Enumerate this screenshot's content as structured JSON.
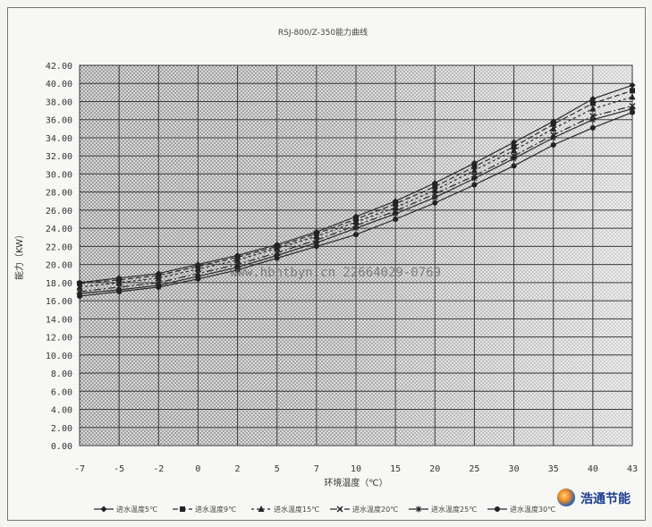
{
  "watermark": "www.hbhtbyn.cn 22664029-0769",
  "logo": {
    "text": "浩通节能"
  },
  "chart_data": {
    "type": "line",
    "title": "RSJ-800/Z-350能力曲线",
    "xlabel": "环境温度（℃）",
    "ylabel": "能力（KW）",
    "x": [
      -7,
      -5,
      -2,
      0,
      2,
      5,
      7,
      10,
      15,
      20,
      25,
      30,
      35,
      40,
      43
    ],
    "x_tick_labels": [
      "-7",
      "-5",
      "-2",
      "0",
      "2",
      "5",
      "7",
      "10",
      "15",
      "20",
      "25",
      "30",
      "35",
      "40",
      "43"
    ],
    "ylim": [
      0,
      42
    ],
    "y_ticks": [
      0,
      2,
      4,
      6,
      8,
      10,
      12,
      14,
      16,
      18,
      20,
      22,
      24,
      26,
      28,
      30,
      32,
      34,
      36,
      38,
      40,
      42
    ],
    "y_tick_labels": [
      "0.00",
      "2.00",
      "4.00",
      "6.00",
      "8.00",
      "10.00",
      "12.00",
      "14.00",
      "16.00",
      "18.00",
      "20.00",
      "22.00",
      "24.00",
      "26.00",
      "28.00",
      "30.00",
      "32.00",
      "34.00",
      "36.00",
      "38.00",
      "40.00",
      "42.00"
    ],
    "grid": true,
    "legend": "bottom",
    "series": [
      {
        "name": "进水温度5℃",
        "marker": "diamond",
        "dash": "",
        "values": [
          18.0,
          18.5,
          19.0,
          20.0,
          21.0,
          22.2,
          23.6,
          25.3,
          27.0,
          29.0,
          31.2,
          33.5,
          35.8,
          38.3,
          39.8
        ]
      },
      {
        "name": "进水温度9℃",
        "marker": "square",
        "dash": "6,3",
        "values": [
          17.9,
          18.3,
          18.8,
          19.8,
          20.8,
          22.0,
          23.4,
          25.0,
          26.7,
          28.6,
          30.8,
          33.0,
          35.5,
          37.8,
          39.2
        ]
      },
      {
        "name": "进水温度15℃",
        "marker": "triangle",
        "dash": "3,3",
        "values": [
          17.5,
          18.0,
          18.5,
          19.5,
          20.5,
          21.8,
          23.1,
          24.7,
          26.3,
          28.2,
          30.4,
          32.6,
          35.0,
          37.2,
          38.5
        ]
      },
      {
        "name": "进水温度20℃",
        "marker": "cross",
        "dash": "8,3,2,3",
        "values": [
          17.0,
          17.5,
          18.0,
          19.0,
          20.0,
          21.3,
          22.7,
          24.3,
          25.9,
          27.8,
          29.8,
          32.0,
          34.3,
          36.4,
          37.5
        ]
      },
      {
        "name": "进水温度25℃",
        "marker": "star",
        "dash": "",
        "values": [
          16.8,
          17.2,
          17.7,
          18.7,
          19.7,
          21.0,
          22.4,
          24.0,
          25.6,
          27.4,
          29.5,
          31.7,
          34.0,
          36.0,
          37.2
        ]
      },
      {
        "name": "进水温度30℃",
        "marker": "dot",
        "dash": "",
        "values": [
          16.5,
          17.0,
          17.5,
          18.4,
          19.4,
          20.7,
          22.0,
          23.3,
          25.0,
          26.8,
          28.8,
          30.9,
          33.2,
          35.1,
          36.8
        ]
      }
    ]
  }
}
